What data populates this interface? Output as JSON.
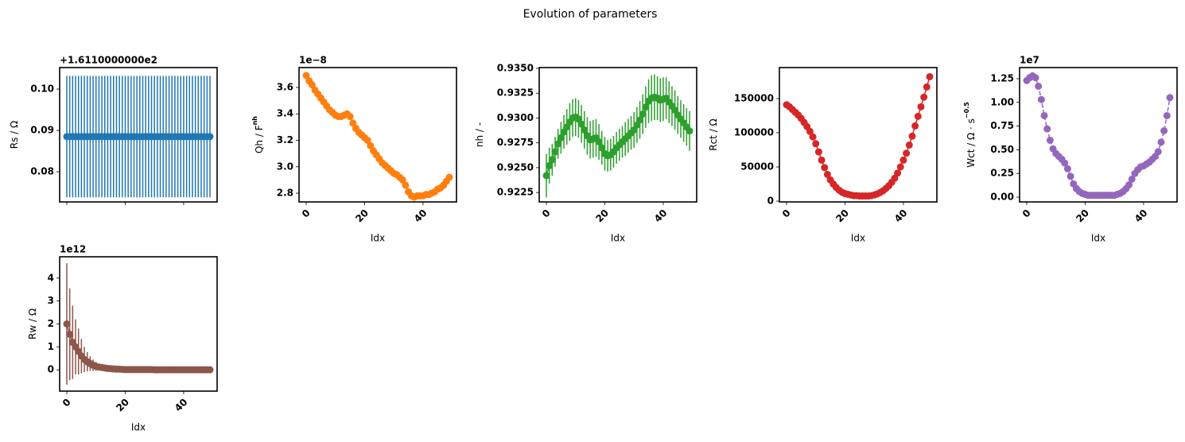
{
  "title": "Evolution of parameters",
  "chart_data": [
    {
      "type": "errorbar",
      "ylabel": "Rs / Ω",
      "offset_text": "+1.6110000000e2",
      "color": "#1f77b4",
      "linestyle": "solid",
      "show_xticklabels": false,
      "xlim": [
        -2.45,
        51.45
      ],
      "xticks": [
        0,
        20,
        40
      ],
      "ylim": [
        0.0727,
        0.1052
      ],
      "yticks": [
        0.08,
        0.09,
        {
          "value": 0.1,
          "label": "0.10"
        }
      ],
      "x": [
        0,
        1,
        2,
        3,
        4,
        5,
        6,
        7,
        8,
        9,
        10,
        11,
        12,
        13,
        14,
        15,
        16,
        17,
        18,
        19,
        20,
        21,
        22,
        23,
        24,
        25,
        26,
        27,
        28,
        29,
        30,
        31,
        32,
        33,
        34,
        35,
        36,
        37,
        38,
        39,
        40,
        41,
        42,
        43,
        44,
        45,
        46,
        47,
        48,
        49
      ],
      "values": [
        0.0885,
        0.0885,
        0.0885,
        0.0885,
        0.0885,
        0.0885,
        0.0885,
        0.0885,
        0.0885,
        0.0885,
        0.0885,
        0.0885,
        0.0885,
        0.0885,
        0.0885,
        0.0885,
        0.0885,
        0.0885,
        0.0885,
        0.0885,
        0.0885,
        0.0885,
        0.0885,
        0.0885,
        0.0885,
        0.0885,
        0.0885,
        0.0885,
        0.0885,
        0.0885,
        0.0885,
        0.0885,
        0.0885,
        0.0885,
        0.0885,
        0.0885,
        0.0885,
        0.0885,
        0.0885,
        0.0885,
        0.0885,
        0.0885,
        0.0885,
        0.0885,
        0.0885,
        0.0885,
        0.0885,
        0.0885,
        0.0885,
        0.0885
      ],
      "errors": [
        0.0147,
        0.0147,
        0.0147,
        0.0147,
        0.0147,
        0.0147,
        0.0147,
        0.0147,
        0.0147,
        0.0147,
        0.0147,
        0.0147,
        0.0147,
        0.0147,
        0.0147,
        0.0147,
        0.0147,
        0.0147,
        0.0147,
        0.0147,
        0.0147,
        0.0147,
        0.0147,
        0.0147,
        0.0147,
        0.0147,
        0.0147,
        0.0147,
        0.0147,
        0.0147,
        0.0147,
        0.0147,
        0.0147,
        0.0147,
        0.0147,
        0.0147,
        0.0147,
        0.0147,
        0.0147,
        0.0147,
        0.0147,
        0.0147,
        0.0147,
        0.0147,
        0.0147,
        0.0147,
        0.0147,
        0.0147,
        0.0147,
        0.0147
      ]
    },
    {
      "type": "line",
      "ylabel": "Qh / F",
      "ylabel_sup": "nh",
      "xlabel": "Idx",
      "offset_text": "1e−8",
      "color": "#ff7f0e",
      "linestyle": "solid",
      "xlim": [
        -2.45,
        51.45
      ],
      "xticks": [
        0,
        20,
        40
      ],
      "ylim": [
        2.734,
        3.75
      ],
      "yticks": [
        2.8,
        {
          "value": 3.0,
          "label": "3.0"
        },
        3.2,
        3.4,
        3.6
      ],
      "x": [
        0,
        1,
        2,
        3,
        4,
        5,
        6,
        7,
        8,
        9,
        10,
        11,
        12,
        13,
        14,
        15,
        16,
        17,
        18,
        19,
        20,
        21,
        22,
        23,
        24,
        25,
        26,
        27,
        28,
        29,
        30,
        31,
        32,
        33,
        34,
        35,
        36,
        37,
        38,
        39,
        40,
        41,
        42,
        43,
        44,
        45,
        46,
        47,
        48,
        49
      ],
      "values": [
        3.69,
        3.65,
        3.62,
        3.58,
        3.55,
        3.52,
        3.49,
        3.46,
        3.43,
        3.41,
        3.39,
        3.38,
        3.38,
        3.39,
        3.4,
        3.38,
        3.33,
        3.29,
        3.26,
        3.24,
        3.22,
        3.2,
        3.16,
        3.12,
        3.09,
        3.06,
        3.03,
        3.01,
        2.99,
        2.97,
        2.95,
        2.94,
        2.92,
        2.9,
        2.86,
        2.81,
        2.78,
        2.77,
        2.78,
        2.78,
        2.78,
        2.79,
        2.79,
        2.8,
        2.81,
        2.83,
        2.84,
        2.86,
        2.89,
        2.92
      ]
    },
    {
      "type": "errorbar",
      "ylabel": "nh / -",
      "xlabel": "Idx",
      "color": "#2ca02c",
      "linestyle": "solid",
      "xlim": [
        -2.45,
        51.45
      ],
      "xticks": [
        0,
        20,
        40
      ],
      "ylim": [
        0.92155,
        0.93508
      ],
      "yticks": [
        0.9225,
        {
          "value": 0.925,
          "label": "0.9250"
        },
        0.9275,
        {
          "value": 0.93,
          "label": "0.9300"
        },
        0.9325,
        {
          "value": 0.935,
          "label": "0.9350"
        }
      ],
      "x": [
        0,
        1,
        2,
        3,
        4,
        5,
        6,
        7,
        8,
        9,
        10,
        11,
        12,
        13,
        14,
        15,
        16,
        17,
        18,
        19,
        20,
        21,
        22,
        23,
        24,
        25,
        26,
        27,
        28,
        29,
        30,
        31,
        32,
        33,
        34,
        35,
        36,
        37,
        38,
        39,
        40,
        41,
        42,
        43,
        44,
        45,
        46,
        47,
        48,
        49
      ],
      "values": [
        0.9242,
        0.9252,
        0.9258,
        0.9266,
        0.9274,
        0.928,
        0.9286,
        0.9291,
        0.9296,
        0.93,
        0.9301,
        0.9299,
        0.9294,
        0.9288,
        0.9282,
        0.9278,
        0.9279,
        0.928,
        0.9276,
        0.927,
        0.9264,
        0.9262,
        0.9263,
        0.9266,
        0.927,
        0.9273,
        0.9276,
        0.9279,
        0.9282,
        0.9285,
        0.9288,
        0.9293,
        0.9298,
        0.9304,
        0.9311,
        0.9317,
        0.932,
        0.9321,
        0.932,
        0.9318,
        0.9319,
        0.932,
        0.9316,
        0.9312,
        0.9308,
        0.9303,
        0.9299,
        0.9295,
        0.9291,
        0.9287
      ],
      "errors": [
        0.0022,
        0.0018,
        0.0016,
        0.0015,
        0.0015,
        0.0016,
        0.0017,
        0.0018,
        0.0019,
        0.0019,
        0.0019,
        0.0019,
        0.0019,
        0.0019,
        0.0019,
        0.0019,
        0.0019,
        0.0019,
        0.0018,
        0.0017,
        0.0017,
        0.0016,
        0.0016,
        0.0016,
        0.0016,
        0.0016,
        0.0016,
        0.0017,
        0.0017,
        0.0017,
        0.0018,
        0.0018,
        0.0019,
        0.002,
        0.0021,
        0.0022,
        0.0023,
        0.0023,
        0.0022,
        0.0022,
        0.0022,
        0.0021,
        0.0021,
        0.002,
        0.002,
        0.0019,
        0.0019,
        0.0019,
        0.0019,
        0.002
      ]
    },
    {
      "type": "line",
      "ylabel": "Rct / Ω",
      "xlabel": "Idx",
      "color": "#d62728",
      "linestyle": "solid",
      "xlim": [
        -2.45,
        51.45
      ],
      "xticks": [
        0,
        20,
        40
      ],
      "ylim": [
        -1163,
        195350
      ],
      "yticks": [
        0,
        50000,
        100000,
        150000
      ],
      "x": [
        0,
        1,
        2,
        3,
        4,
        5,
        6,
        7,
        8,
        9,
        10,
        11,
        12,
        13,
        14,
        15,
        16,
        17,
        18,
        19,
        20,
        21,
        22,
        23,
        24,
        25,
        26,
        27,
        28,
        29,
        30,
        31,
        32,
        33,
        34,
        35,
        36,
        37,
        38,
        39,
        40,
        41,
        42,
        43,
        44,
        45,
        46,
        47,
        48,
        49
      ],
      "values": [
        141000,
        138000,
        134000,
        130000,
        126000,
        121000,
        115000,
        109000,
        102000,
        94000,
        84000,
        72000,
        60000,
        49000,
        39000,
        31000,
        25000,
        20000,
        16000,
        13000,
        11000,
        10000,
        9000,
        8000,
        8000,
        7500,
        7500,
        7500,
        7500,
        8000,
        9000,
        10500,
        12500,
        15000,
        18500,
        22500,
        27500,
        33500,
        41000,
        50000,
        60000,
        70000,
        82000,
        95000,
        110000,
        124000,
        138000,
        152000,
        167000,
        182000
      ]
    },
    {
      "type": "line",
      "ylabel": "Wct / Ω · s",
      "ylabel_sup": "−0.5",
      "xlabel": "Idx",
      "offset_text": "1e7",
      "color": "#9467bd",
      "linestyle": "dashed",
      "xlim": [
        -2.45,
        51.45
      ],
      "xticks": [
        0,
        20,
        40
      ],
      "ylim": [
        -0.05,
        1.367
      ],
      "yticks": [
        {
          "value": 0,
          "label": "0.00"
        },
        0.25,
        {
          "value": 0.5,
          "label": "0.50"
        },
        0.75,
        {
          "value": 1,
          "label": "1.00"
        },
        1.25
      ],
      "x": [
        0,
        1,
        2,
        3,
        4,
        5,
        6,
        7,
        8,
        9,
        10,
        11,
        12,
        13,
        14,
        15,
        16,
        17,
        18,
        19,
        20,
        21,
        22,
        23,
        24,
        25,
        26,
        27,
        28,
        29,
        30,
        31,
        32,
        33,
        34,
        35,
        36,
        37,
        38,
        39,
        40,
        41,
        42,
        43,
        44,
        45,
        46,
        47,
        48,
        49
      ],
      "values": [
        1.23,
        1.26,
        1.28,
        1.26,
        1.17,
        1.03,
        0.86,
        0.72,
        0.6,
        0.51,
        0.46,
        0.43,
        0.4,
        0.36,
        0.3,
        0.22,
        0.14,
        0.09,
        0.06,
        0.04,
        0.03,
        0.02,
        0.02,
        0.02,
        0.02,
        0.02,
        0.02,
        0.02,
        0.02,
        0.02,
        0.02,
        0.03,
        0.04,
        0.06,
        0.09,
        0.13,
        0.19,
        0.25,
        0.29,
        0.32,
        0.33,
        0.35,
        0.37,
        0.4,
        0.43,
        0.48,
        0.58,
        0.7,
        0.86,
        1.05
      ]
    },
    {
      "type": "errorbar",
      "ylabel": "Rw / Ω",
      "xlabel": "Idx",
      "offset_text": "1e12",
      "color": "#8c564b",
      "linestyle": "solid",
      "xlim": [
        -2.45,
        51.45
      ],
      "xticks": [
        0,
        20,
        40
      ],
      "ylim": [
        -0.93,
        4.93
      ],
      "yticks": [
        0,
        1,
        2,
        3,
        4
      ],
      "x": [
        0,
        1,
        2,
        3,
        4,
        5,
        6,
        7,
        8,
        9,
        10,
        11,
        12,
        13,
        14,
        15,
        16,
        17,
        18,
        19,
        20,
        21,
        22,
        23,
        24,
        25,
        26,
        27,
        28,
        29,
        30,
        31,
        32,
        33,
        34,
        35,
        36,
        37,
        38,
        39,
        40,
        41,
        42,
        43,
        44,
        45,
        46,
        47,
        48,
        49
      ],
      "values": [
        2.0,
        1.55,
        1.2,
        1.0,
        0.8,
        0.6,
        0.45,
        0.35,
        0.27,
        0.2,
        0.15,
        0.12,
        0.1,
        0.08,
        0.06,
        0.05,
        0.04,
        0.03,
        0.03,
        0.02,
        0.01,
        0.01,
        0.01,
        0.01,
        0.01,
        0.01,
        0.01,
        0.01,
        0.01,
        0.01,
        0,
        0,
        0,
        0,
        0,
        0,
        0,
        0,
        0,
        0,
        0,
        0,
        0,
        0,
        0,
        0,
        0,
        0,
        0,
        0
      ],
      "errors": [
        2.65,
        2.0,
        1.6,
        1.2,
        1.0,
        0.75,
        0.55,
        0.42,
        0.32,
        0.25,
        0.19,
        0.15,
        0.12,
        0.1,
        0.08,
        0.06,
        0.05,
        0.04,
        0.03,
        0.03,
        0.02,
        0.02,
        0.02,
        0.02,
        0.02,
        0.02,
        0.02,
        0.02,
        0.02,
        0.02,
        0.01,
        0.01,
        0.01,
        0.01,
        0.01,
        0.01,
        0.01,
        0.01,
        0.01,
        0.01,
        0.01,
        0.01,
        0.01,
        0.01,
        0.01,
        0.01,
        0.01,
        0.01,
        0.01,
        0.01
      ]
    }
  ]
}
